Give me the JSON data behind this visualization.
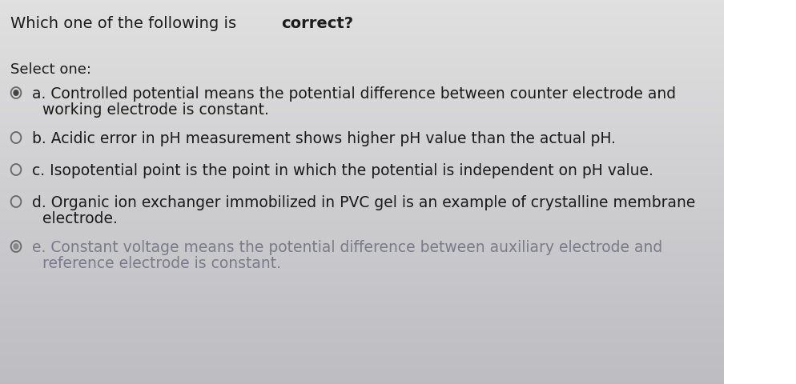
{
  "background_color_top": "#d8d8d8",
  "background_color_bottom": "#b0b0b8",
  "title_normal": "Which one of the following is ",
  "title_bold": "correct?",
  "select_one": "Select one:",
  "options": [
    {
      "label": "a",
      "line1": "a. Controlled potential means the potential difference between counter electrode and",
      "line2": "working electrode is constant.",
      "radio_style": "half",
      "text_color": "#1a1a1a"
    },
    {
      "label": "b",
      "line1": "b. Acidic error in pH measurement shows higher pH value than the actual pH.",
      "line2": "",
      "radio_style": "empty",
      "text_color": "#1a1a1a"
    },
    {
      "label": "c",
      "line1": "c. Isopotential point is the point in which the potential is independent on pH value.",
      "line2": "",
      "radio_style": "empty",
      "text_color": "#1a1a1a"
    },
    {
      "label": "d",
      "line1": "d. Organic ion exchanger immobilized in PVC gel is an example of crystalline membrane",
      "line2": "electrode.",
      "radio_style": "empty",
      "text_color": "#1a1a1a"
    },
    {
      "label": "e",
      "line1": "e. Constant voltage means the potential difference between auxiliary electrode and",
      "line2": "reference electrode is constant.",
      "radio_style": "half_filled",
      "text_color": "#7a7a8a"
    }
  ],
  "title_fontsize": 14,
  "body_fontsize": 13.5,
  "select_fontsize": 13
}
